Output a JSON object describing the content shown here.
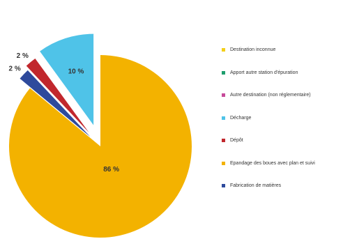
{
  "chart_data": {
    "type": "pie",
    "title": "",
    "slices": [
      {
        "name": "Epandage des boues avec plan et suivi",
        "value": 86,
        "label": "86 %",
        "color": "#f3b200",
        "exploded": false
      },
      {
        "name": "Fabrication de matières",
        "value": 2,
        "label": "2 %",
        "color": "#2e4a9c",
        "exploded": true
      },
      {
        "name": "Dépôt",
        "value": 2,
        "label": "2 %",
        "color": "#c1272d",
        "exploded": true
      },
      {
        "name": "Décharge",
        "value": 10,
        "label": "10 %",
        "color": "#4fc3e8",
        "exploded": true
      },
      {
        "name": "Destination inconnue",
        "value": 0,
        "label": "",
        "color": "#f3cf1a",
        "exploded": false
      },
      {
        "name": "Apport autre station d'épuration",
        "value": 0,
        "label": "",
        "color": "#1e9e6e",
        "exploded": false
      },
      {
        "name": "Autre destination (non réglementaire)",
        "value": 0,
        "label": "",
        "color": "#c74a9a",
        "exploded": false
      }
    ],
    "legend": {
      "position": "right",
      "entries": [
        {
          "label": "Destination inconnue",
          "color": "#f3cf1a"
        },
        {
          "label": "Apport autre station d'épuration",
          "color": "#1e9e6e"
        },
        {
          "label": "Autre destination (non réglementaire)",
          "color": "#c74a9a"
        },
        {
          "label": "Décharge",
          "color": "#4fc3e8"
        },
        {
          "label": "Dépôt",
          "color": "#c1272d"
        },
        {
          "label": "Epandage des boues avec plan et suivi",
          "color": "#f3b200"
        },
        {
          "label": "Fabrication de matières",
          "color": "#2e4a9c"
        }
      ]
    }
  }
}
